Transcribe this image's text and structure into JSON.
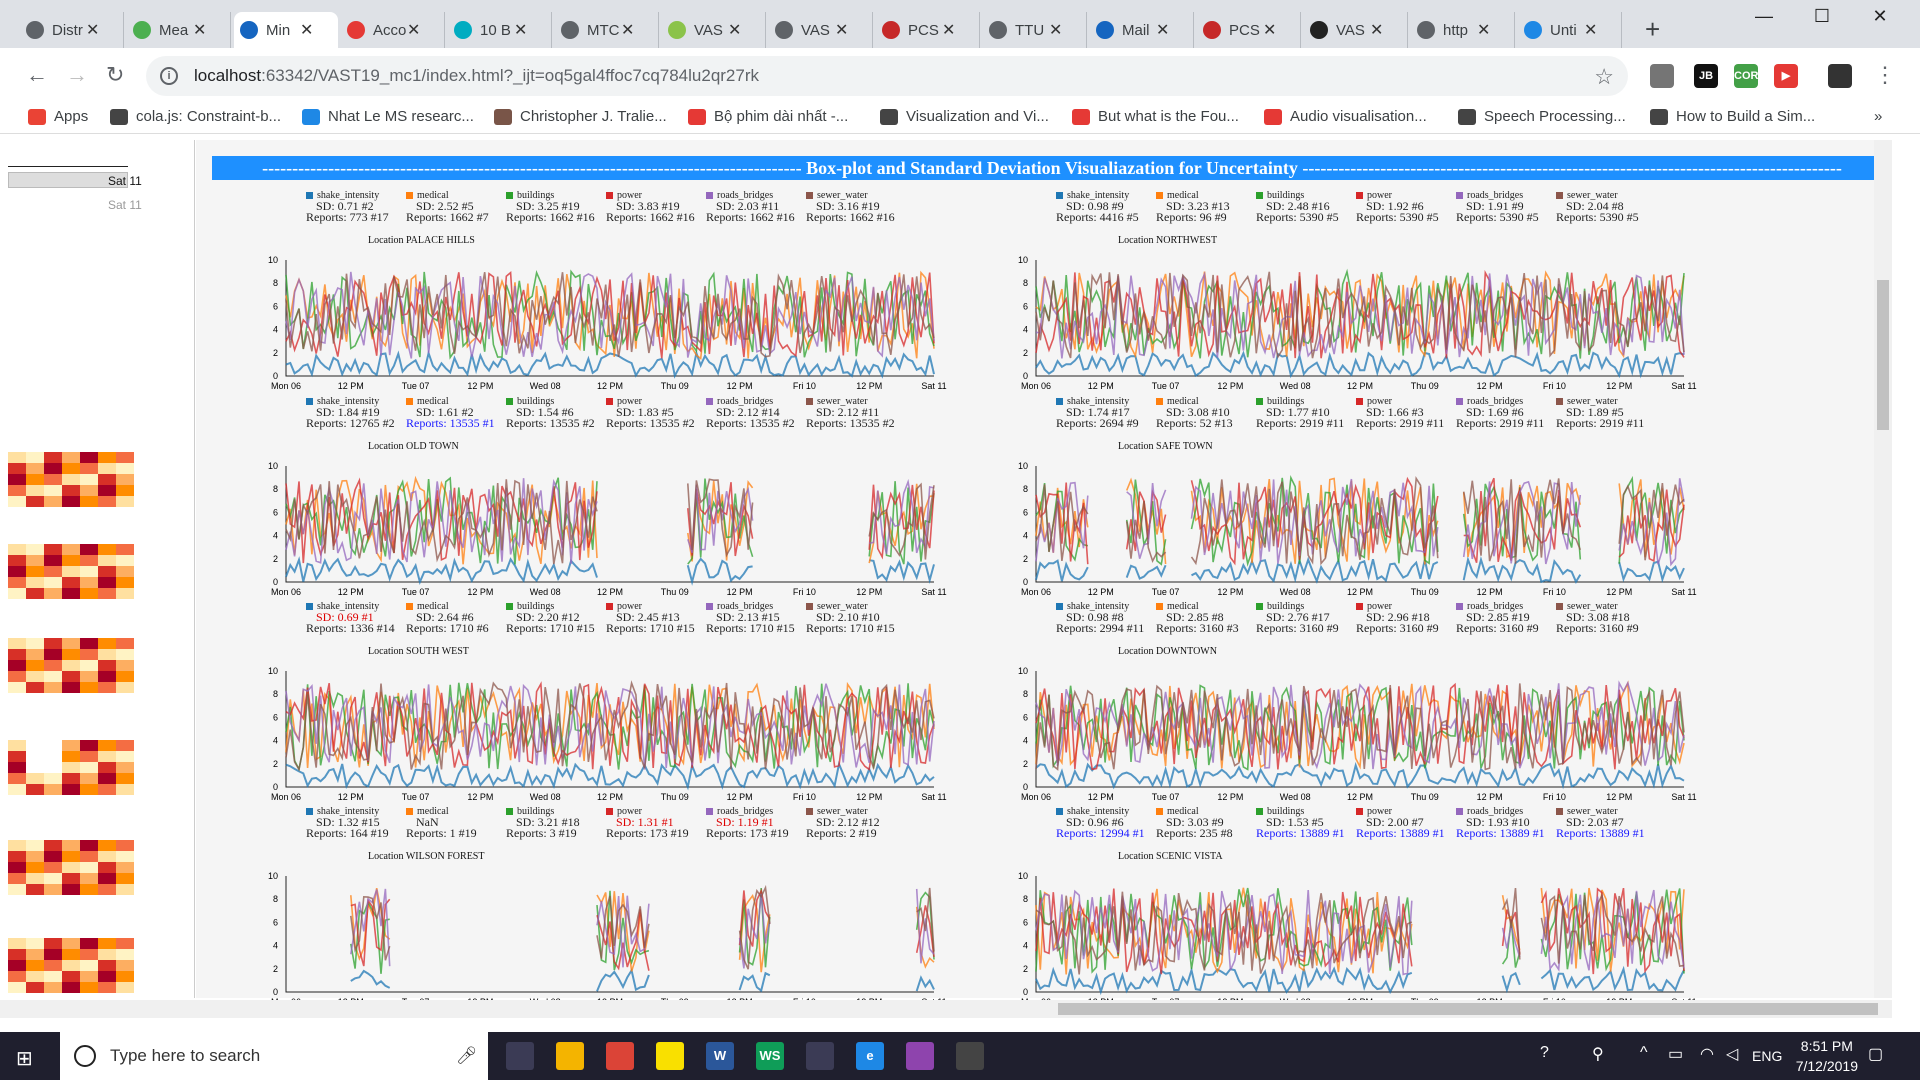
{
  "tabs": [
    {
      "label": "Distr",
      "color": "#5f6368"
    },
    {
      "label": "Mea",
      "color": "#4caf50"
    },
    {
      "label": "Min",
      "color": "#1565c0"
    },
    {
      "label": "Acco",
      "color": "#e53935"
    },
    {
      "label": "10 B",
      "color": "#00acc1"
    },
    {
      "label": "MTC",
      "color": "#5f6368"
    },
    {
      "label": "VAS",
      "color": "#8bc34a"
    },
    {
      "label": "VAS",
      "color": "#5f6368"
    },
    {
      "label": "PCS",
      "color": "#c62828"
    },
    {
      "label": "TTU",
      "color": "#5f6368"
    },
    {
      "label": "Mail",
      "color": "#1565c0"
    },
    {
      "label": "PCS",
      "color": "#c62828"
    },
    {
      "label": "VAS",
      "color": "#222222"
    },
    {
      "label": "http",
      "color": "#5f6368"
    },
    {
      "label": "Unti",
      "color": "#1e88e5"
    }
  ],
  "window_controls": {
    "minimize": "—",
    "maximize": "☐",
    "close": "✕"
  },
  "url": {
    "host": "localhost",
    "path": ":63342/VAST19_mc1/index.html?_ijt=oq5gal4ffoc7cq784lu2qr27rk"
  },
  "extensions": [
    {
      "label": "",
      "color": "#757575"
    },
    {
      "label": "JB",
      "color": "#111111"
    },
    {
      "label": "CORS",
      "color": "#43a047"
    },
    {
      "label": "▶",
      "color": "#e53935"
    },
    {
      "label": "",
      "color": "#333333"
    }
  ],
  "bookmarks": [
    {
      "label": "Apps",
      "color": "#ea4335"
    },
    {
      "label": "cola.js: Constraint-b...",
      "color": "#444444"
    },
    {
      "label": "Nhat Le MS researc...",
      "color": "#1e88e5"
    },
    {
      "label": "Christopher J. Tralie...",
      "color": "#795548"
    },
    {
      "label": "Bộ phim dài nhất -...",
      "color": "#e53935"
    },
    {
      "label": "Visualization and Vi...",
      "color": "#444444"
    },
    {
      "label": "But what is the Fou...",
      "color": "#e53935"
    },
    {
      "label": "Audio visualisation...",
      "color": "#e53935"
    },
    {
      "label": "Speech Processing...",
      "color": "#444444"
    },
    {
      "label": "How to Build a Sim...",
      "color": "#444444"
    }
  ],
  "bookmarks_more": "»",
  "left": {
    "sat_label_1": "Sat 11",
    "sat_label_2": "Sat 11"
  },
  "main_title": "------------------------------------------------------------------------------------------ Box-plot and Standard Deviation Visualiazation for Uncertainty ------------------------------------------------------------------------------------------",
  "categories": [
    {
      "name": "shake_intensity",
      "color": "#1f77b4"
    },
    {
      "name": "medical",
      "color": "#ff7f0e"
    },
    {
      "name": "buildings",
      "color": "#2ca02c"
    },
    {
      "name": "power",
      "color": "#d62728"
    },
    {
      "name": "roads_bridges",
      "color": "#9467bd"
    },
    {
      "name": "sewer_water",
      "color": "#8c564b"
    }
  ],
  "x_ticks": [
    "Mon 06",
    "12 PM",
    "Tue 07",
    "12 PM",
    "Wed 08",
    "12 PM",
    "Thu 09",
    "12 PM",
    "Fri 10",
    "12 PM",
    "Sat 11"
  ],
  "y_ticks": [
    "0",
    "2",
    "4",
    "6",
    "8",
    "10"
  ],
  "panels": [
    {
      "location": "Location PALACE HILLS",
      "stats": [
        {
          "sd": "SD: 0.71 #2",
          "reports": "Reports: 773 #17"
        },
        {
          "sd": "SD: 2.52 #5",
          "reports": "Reports: 1662 #7"
        },
        {
          "sd": "SD: 3.25 #19",
          "reports": "Reports: 1662 #16"
        },
        {
          "sd": "SD: 3.83 #19",
          "reports": "Reports: 1662 #16"
        },
        {
          "sd": "SD: 2.03 #11",
          "reports": "Reports: 1662 #16"
        },
        {
          "sd": "SD: 3.16 #19",
          "reports": "Reports: 1662 #16"
        }
      ]
    },
    {
      "location": "Location NORTHWEST",
      "stats": [
        {
          "sd": "SD: 0.98 #9",
          "reports": "Reports: 4416 #5"
        },
        {
          "sd": "SD: 3.23 #13",
          "reports": "Reports: 96 #9"
        },
        {
          "sd": "SD: 2.48 #16",
          "reports": "Reports: 5390 #5"
        },
        {
          "sd": "SD: 1.92 #6",
          "reports": "Reports: 5390 #5"
        },
        {
          "sd": "SD: 1.91 #9",
          "reports": "Reports: 5390 #5"
        },
        {
          "sd": "SD: 2.04 #8",
          "reports": "Reports: 5390 #5"
        }
      ]
    },
    {
      "location": "Location OLD TOWN",
      "stats": [
        {
          "sd": "SD: 1.84 #19",
          "reports": "Reports: 12765 #2"
        },
        {
          "sd": "SD: 1.61 #2",
          "reports": "Reports: 13535 #1",
          "rp_class": "blue"
        },
        {
          "sd": "SD: 1.54 #6",
          "reports": "Reports: 13535 #2"
        },
        {
          "sd": "SD: 1.83 #5",
          "reports": "Reports: 13535 #2"
        },
        {
          "sd": "SD: 2.12 #14",
          "reports": "Reports: 13535 #2"
        },
        {
          "sd": "SD: 2.12 #11",
          "reports": "Reports: 13535 #2"
        }
      ]
    },
    {
      "location": "Location SAFE TOWN",
      "stats": [
        {
          "sd": "SD: 1.74 #17",
          "reports": "Reports: 2694 #9"
        },
        {
          "sd": "SD: 3.08 #10",
          "reports": "Reports: 52 #13"
        },
        {
          "sd": "SD: 1.77 #10",
          "reports": "Reports: 2919 #11"
        },
        {
          "sd": "SD: 1.66 #3",
          "reports": "Reports: 2919 #11"
        },
        {
          "sd": "SD: 1.69 #6",
          "reports": "Reports: 2919 #11"
        },
        {
          "sd": "SD: 1.89 #5",
          "reports": "Reports: 2919 #11"
        }
      ]
    },
    {
      "location": "Location SOUTH WEST",
      "stats": [
        {
          "sd": "SD: 0.69 #1",
          "sd_class": "red",
          "reports": "Reports: 1336 #14"
        },
        {
          "sd": "SD: 2.64 #6",
          "reports": "Reports: 1710 #6"
        },
        {
          "sd": "SD: 2.20 #12",
          "reports": "Reports: 1710 #15"
        },
        {
          "sd": "SD: 2.45 #13",
          "reports": "Reports: 1710 #15"
        },
        {
          "sd": "SD: 2.13 #15",
          "reports": "Reports: 1710 #15"
        },
        {
          "sd": "SD: 2.10 #10",
          "reports": "Reports: 1710 #15"
        }
      ]
    },
    {
      "location": "Location DOWNTOWN",
      "stats": [
        {
          "sd": "SD: 0.98 #8",
          "reports": "Reports: 2994 #11"
        },
        {
          "sd": "SD: 2.85 #8",
          "reports": "Reports: 3160 #3"
        },
        {
          "sd": "SD: 2.76 #17",
          "reports": "Reports: 3160 #9"
        },
        {
          "sd": "SD: 2.96 #18",
          "reports": "Reports: 3160 #9"
        },
        {
          "sd": "SD: 2.85 #19",
          "reports": "Reports: 3160 #9"
        },
        {
          "sd": "SD: 3.08 #18",
          "reports": "Reports: 3160 #9"
        }
      ]
    },
    {
      "location": "Location WILSON FOREST",
      "stats": [
        {
          "sd": "SD: 1.32 #15",
          "reports": "Reports: 164 #19"
        },
        {
          "sd": "NaN",
          "reports": "Reports: 1 #19"
        },
        {
          "sd": "SD: 3.21 #18",
          "reports": "Reports: 3 #19"
        },
        {
          "sd": "SD: 1.31 #1",
          "sd_class": "red",
          "reports": "Reports: 173 #19"
        },
        {
          "sd": "SD: 1.19 #1",
          "sd_class": "red",
          "reports": "Reports: 173 #19"
        },
        {
          "sd": "SD: 2.12 #12",
          "reports": "Reports: 2 #19"
        }
      ]
    },
    {
      "location": "Location SCENIC VISTA",
      "stats": [
        {
          "sd": "SD: 0.96 #6",
          "reports": "Reports: 12994 #1",
          "rp_class": "blue"
        },
        {
          "sd": "SD: 3.03 #9",
          "reports": "Reports: 235 #8"
        },
        {
          "sd": "SD: 1.53 #5",
          "reports": "Reports: 13889 #1",
          "rp_class": "blue"
        },
        {
          "sd": "SD: 2.00 #7",
          "reports": "Reports: 13889 #1",
          "rp_class": "blue"
        },
        {
          "sd": "SD: 1.93 #10",
          "reports": "Reports: 13889 #1",
          "rp_class": "blue"
        },
        {
          "sd": "SD: 2.03 #7",
          "reports": "Reports: 13889 #1",
          "rp_class": "blue"
        }
      ]
    }
  ],
  "chart_data": {
    "type": "line",
    "x": [
      "Mon 06",
      "Sat 11"
    ],
    "ylim": [
      0,
      10
    ],
    "series": [
      {
        "name": "shake_intensity"
      },
      {
        "name": "medical"
      },
      {
        "name": "buildings"
      },
      {
        "name": "power"
      },
      {
        "name": "roads_bridges"
      },
      {
        "name": "sewer_water"
      }
    ]
  },
  "taskbar": {
    "search_placeholder": "Type here to search",
    "time": "8:51 PM",
    "date": "7/12/2019",
    "lang": "ENG",
    "apps": [
      {
        "label": "",
        "color": "#3b3b55"
      },
      {
        "label": "",
        "color": "#f4b400"
      },
      {
        "label": "",
        "color": "#db4437"
      },
      {
        "label": "",
        "color": "#f9e000"
      },
      {
        "label": "W",
        "color": "#2b579a"
      },
      {
        "label": "WS",
        "color": "#0f9d58"
      },
      {
        "label": "",
        "color": "#3b3b55"
      },
      {
        "label": "e",
        "color": "#1e88e5"
      },
      {
        "label": "",
        "color": "#8e44ad"
      },
      {
        "label": "",
        "color": "#444444"
      }
    ]
  }
}
